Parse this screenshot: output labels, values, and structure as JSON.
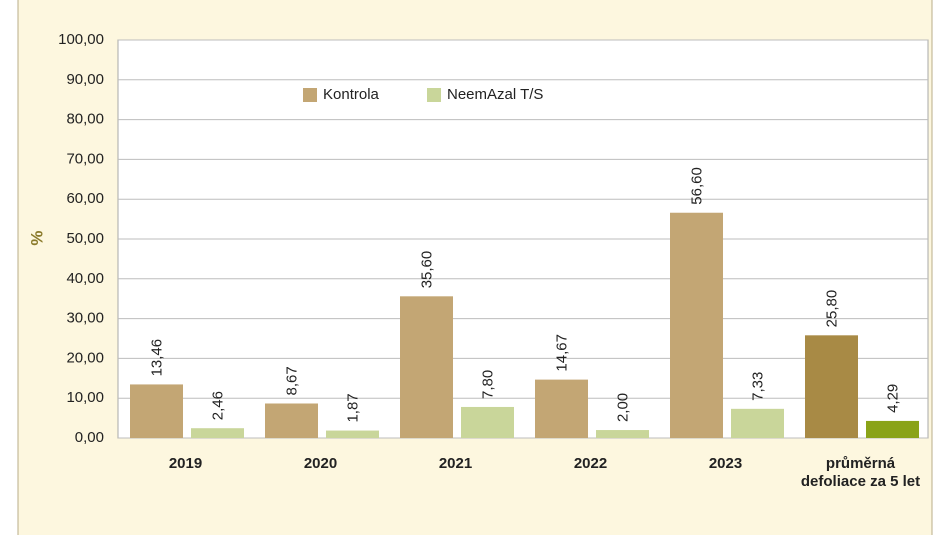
{
  "chart_data": {
    "type": "bar",
    "categories": [
      "2019",
      "2020",
      "2021",
      "2022",
      "2023",
      "průměrná defoliace za 5 let"
    ],
    "series": [
      {
        "name": "Kontrola",
        "color": "#c3a674",
        "colors": [
          "#c3a674",
          "#c3a674",
          "#c3a674",
          "#c3a674",
          "#c3a674",
          "#a88a45"
        ],
        "values": [
          13.46,
          8.67,
          35.6,
          14.67,
          56.6,
          25.8
        ],
        "value_labels": [
          "13,46",
          "8,67",
          "35,60",
          "14,67",
          "56,60",
          "25,80"
        ]
      },
      {
        "name": "NeemAzal T/S",
        "color": "#c9d69a",
        "colors": [
          "#c9d69a",
          "#c9d69a",
          "#c9d69a",
          "#c9d69a",
          "#c9d69a",
          "#8aa318"
        ],
        "values": [
          2.46,
          1.87,
          7.8,
          2.0,
          7.33,
          4.29
        ],
        "value_labels": [
          "2,46",
          "1,87",
          "7,80",
          "2,00",
          "7,33",
          "4,29"
        ]
      }
    ],
    "y_label": "%",
    "ylim": [
      0,
      100
    ],
    "yticks": [
      {
        "value": 0,
        "label": "0,00"
      },
      {
        "value": 10,
        "label": "10,00"
      },
      {
        "value": 20,
        "label": "20,00"
      },
      {
        "value": 30,
        "label": "30,00"
      },
      {
        "value": 40,
        "label": "40,00"
      },
      {
        "value": 50,
        "label": "50,00"
      },
      {
        "value": 60,
        "label": "60,00"
      },
      {
        "value": 70,
        "label": "70,00"
      },
      {
        "value": 80,
        "label": "80,00"
      },
      {
        "value": 90,
        "label": "90,00"
      },
      {
        "value": 100,
        "label": "100,00"
      }
    ],
    "grid": true,
    "legend": "top"
  }
}
